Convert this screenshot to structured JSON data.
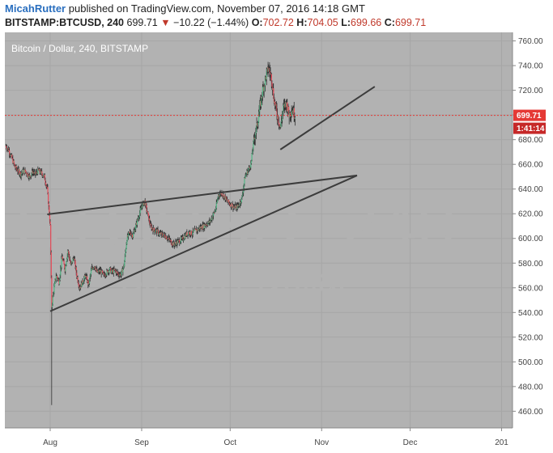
{
  "header": {
    "author": "MicahRutter",
    "published": "published on TradingView.com, November 07, 2016 14:18 GMT",
    "symbol": "BITSTAMP:BTCUSD, 240",
    "last": "699.71",
    "change": "−10.22 (−1.44%)",
    "o_label": "O:",
    "o_value": "702.72",
    "h_label": "H:",
    "h_value": "704.05",
    "l_label": "L:",
    "l_value": "699.66",
    "c_label": "C:",
    "c_value": "699.71"
  },
  "chart_data": {
    "type": "candlestick",
    "title": "Bitcoin / Dollar, 240, BITSTAMP",
    "watermark_symbol": "BTCUSD, 240",
    "watermark_name": "Bitcoin / Dollar",
    "ylim": [
      455,
      763
    ],
    "y_ticks": [
      "760.00",
      "740.00",
      "720.00",
      "700.00",
      "680.00",
      "660.00",
      "640.00",
      "620.00",
      "600.00",
      "580.00",
      "560.00",
      "540.00",
      "520.00",
      "500.00",
      "480.00",
      "460.00"
    ],
    "y_tick_values": [
      760,
      740,
      720,
      700,
      680,
      660,
      640,
      620,
      600,
      580,
      560,
      540,
      520,
      500,
      480,
      460
    ],
    "x_range_days": [
      -50,
      88
    ],
    "x_ticks": [
      {
        "label": "Aug",
        "day": 0
      },
      {
        "label": "Sep",
        "day": 31
      },
      {
        "label": "Oct",
        "day": 61
      },
      {
        "label": "Nov",
        "day": 92
      },
      {
        "label": "Dec",
        "day": 122
      },
      {
        "label": "201",
        "day": 153
      }
    ],
    "x_tick_days_scale": {
      "aug_day": 0
    },
    "last_price_tag": "699.71",
    "last_price": 699.71,
    "countdown_tag": "1:41:14",
    "grid": true,
    "colors": {
      "background": "#b2b2b2",
      "up": "#53b987",
      "down": "#eb4d5c",
      "trend": "#3c3c3c",
      "price_line": "#e53935",
      "grid": "#a6a6a6"
    },
    "price_path": [
      [
        -15,
        675
      ],
      [
        -14,
        671
      ],
      [
        -13,
        665
      ],
      [
        -12,
        658
      ],
      [
        -11,
        655
      ],
      [
        -10,
        652
      ],
      [
        -9,
        655
      ],
      [
        -8,
        653
      ],
      [
        -7,
        650
      ],
      [
        -6,
        654
      ],
      [
        -5,
        652
      ],
      [
        -4,
        655
      ],
      [
        -3,
        653
      ],
      [
        -2,
        650
      ],
      [
        -1,
        640
      ],
      [
        0,
        610
      ],
      [
        0.5,
        545
      ],
      [
        1,
        555
      ],
      [
        2,
        570
      ],
      [
        3,
        565
      ],
      [
        4,
        585
      ],
      [
        5,
        575
      ],
      [
        6,
        590
      ],
      [
        7,
        578
      ],
      [
        8,
        585
      ],
      [
        9,
        570
      ],
      [
        10,
        560
      ],
      [
        11,
        565
      ],
      [
        12,
        570
      ],
      [
        13,
        562
      ],
      [
        14,
        575
      ],
      [
        15,
        578
      ],
      [
        16,
        572
      ],
      [
        17,
        574
      ],
      [
        18,
        570
      ],
      [
        19,
        572
      ],
      [
        20,
        575
      ],
      [
        21,
        573
      ],
      [
        22,
        574
      ],
      [
        23,
        571
      ],
      [
        24,
        571
      ],
      [
        25,
        578
      ],
      [
        26,
        600
      ],
      [
        27,
        605
      ],
      [
        28,
        602
      ],
      [
        29,
        610
      ],
      [
        30,
        618
      ],
      [
        31,
        626
      ],
      [
        32,
        630
      ],
      [
        33,
        620
      ],
      [
        34,
        610
      ],
      [
        35,
        607
      ],
      [
        36,
        606
      ],
      [
        37,
        604
      ],
      [
        38,
        603
      ],
      [
        39,
        602
      ],
      [
        40,
        600
      ],
      [
        41,
        597
      ],
      [
        42,
        595
      ],
      [
        43,
        597
      ],
      [
        44,
        598
      ],
      [
        45,
        600
      ],
      [
        46,
        603
      ],
      [
        47,
        605
      ],
      [
        48,
        604
      ],
      [
        49,
        606
      ],
      [
        50,
        607
      ],
      [
        51,
        609
      ],
      [
        52,
        610
      ],
      [
        53,
        612
      ],
      [
        54,
        613
      ],
      [
        55,
        618
      ],
      [
        56,
        623
      ],
      [
        57,
        635
      ],
      [
        58,
        637
      ],
      [
        59,
        634
      ],
      [
        60,
        630
      ],
      [
        61,
        628
      ],
      [
        62,
        626
      ],
      [
        63,
        625
      ],
      [
        64,
        627
      ],
      [
        65,
        633
      ],
      [
        66,
        650
      ],
      [
        67,
        655
      ],
      [
        68,
        660
      ],
      [
        69,
        680
      ],
      [
        70,
        690
      ],
      [
        71,
        705
      ],
      [
        72,
        720
      ],
      [
        73,
        730
      ],
      [
        74,
        738
      ],
      [
        75,
        730
      ],
      [
        76,
        710
      ],
      [
        77,
        700
      ],
      [
        78,
        690
      ],
      [
        79,
        705
      ],
      [
        80,
        710
      ],
      [
        81,
        700
      ],
      [
        82,
        705
      ],
      [
        83,
        699.71
      ]
    ],
    "trendlines": [
      {
        "from": [
          -1,
          619.5
        ],
        "to": [
          104,
          651
        ]
      },
      {
        "from": [
          0,
          541
        ],
        "to": [
          104,
          651
        ]
      },
      {
        "from": [
          78,
          672
        ],
        "to": [
          110,
          723
        ]
      }
    ]
  }
}
